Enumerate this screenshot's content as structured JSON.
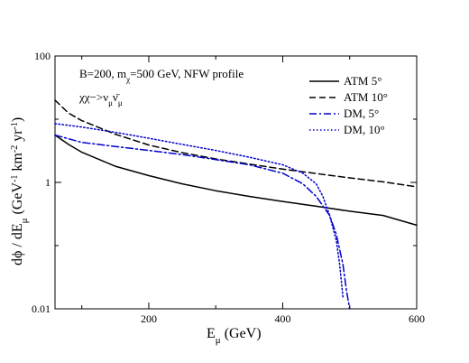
{
  "chart_data": {
    "type": "line",
    "annotations": [
      "B=200,  mχ=500 GeV, NFW profile",
      "χχ→νμν̅μ"
    ],
    "xlabel": "Eμ (GeV)",
    "ylabel": "dϕ / dEμ (GeV⁻¹ km⁻² yr⁻¹)",
    "x_ticks": [
      "200",
      "400",
      "600"
    ],
    "y_ticks": [
      "0.01",
      "1",
      "100"
    ],
    "xlim": [
      60,
      600
    ],
    "ylim": [
      0.01,
      100
    ],
    "yscale": "log",
    "legend_position": "top-right",
    "series": [
      {
        "name": "ATM 5°",
        "color": "#000000",
        "dash": "solid",
        "x": [
          60,
          80,
          100,
          150,
          200,
          250,
          300,
          350,
          400,
          450,
          500,
          550,
          600
        ],
        "y": [
          5.6,
          4.0,
          3.0,
          1.8,
          1.28,
          0.95,
          0.74,
          0.6,
          0.5,
          0.42,
          0.35,
          0.3,
          0.21
        ]
      },
      {
        "name": "ATM 10°",
        "color": "#000000",
        "dash": "dashed",
        "x": [
          60,
          80,
          100,
          150,
          200,
          250,
          300,
          350,
          400,
          450,
          500,
          550,
          600
        ],
        "y": [
          20,
          12.5,
          9.5,
          5.8,
          3.9,
          2.95,
          2.35,
          1.95,
          1.62,
          1.38,
          1.18,
          1.02,
          0.85
        ]
      },
      {
        "name": "DM,  5°",
        "color": "#0000cc",
        "dash": "dashdot",
        "x": [
          60,
          100,
          150,
          200,
          250,
          300,
          350,
          400,
          430,
          450,
          470,
          480,
          490,
          495,
          500
        ],
        "y": [
          5.6,
          4.3,
          3.7,
          3.2,
          2.75,
          2.3,
          1.9,
          1.4,
          0.95,
          0.6,
          0.3,
          0.15,
          0.05,
          0.02,
          0.01
        ]
      },
      {
        "name": "DM, 10°",
        "color": "#0000cc",
        "dash": "dotted",
        "x": [
          60,
          100,
          150,
          200,
          250,
          300,
          350,
          400,
          430,
          450,
          460,
          470,
          480,
          485,
          490
        ],
        "y": [
          8.5,
          7.5,
          6.2,
          5.0,
          4.0,
          3.2,
          2.5,
          1.9,
          1.4,
          0.95,
          0.6,
          0.3,
          0.12,
          0.05,
          0.015
        ]
      }
    ]
  }
}
